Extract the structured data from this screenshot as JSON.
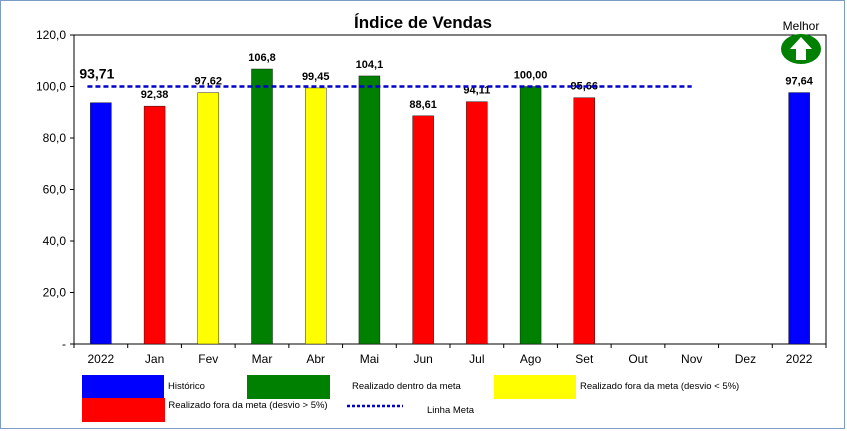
{
  "chart_data": {
    "type": "bar",
    "title": "Índice de Vendas",
    "ylim": [
      0,
      120
    ],
    "yticks": [
      "-",
      "20,0",
      "40,0",
      "60,0",
      "80,0",
      "100,0",
      "120,0"
    ],
    "grid": false,
    "categories": [
      "2022",
      "Jan",
      "Fev",
      "Mar",
      "Abr",
      "Mai",
      "Jun",
      "Jul",
      "Ago",
      "Set",
      "Out",
      "Nov",
      "Dez",
      "2022"
    ],
    "values": [
      93.71,
      92.38,
      97.62,
      106.8,
      99.45,
      104.1,
      88.61,
      94.11,
      100.0,
      95.66,
      null,
      null,
      null,
      97.64
    ],
    "value_labels": [
      "93,71",
      "92,38",
      "97,62",
      "106,8",
      "99,45",
      "104,1",
      "88,61",
      "94,11",
      "100,00",
      "95,66",
      "",
      "",
      "",
      "97,64"
    ],
    "bar_colors": [
      "#0000ff",
      "#ff0000",
      "#ffff00",
      "#008000",
      "#ffff00",
      "#008000",
      "#ff0000",
      "#ff0000",
      "#008000",
      "#ff0000",
      "",
      "",
      "",
      "#0000ff"
    ],
    "meta_line": {
      "value": 100,
      "from_category": "2022",
      "to_category": "Nov",
      "color": "#0000cc"
    },
    "indicator": {
      "label": "Melhor",
      "icon": "up-arrow-icon",
      "color": "#008000"
    },
    "legend": [
      {
        "label": "Histórico",
        "color": "#0000ff",
        "kind": "box"
      },
      {
        "label": "Realizado dentro da meta",
        "color": "#008000",
        "kind": "box"
      },
      {
        "label": "Realizado fora da meta (desvio < 5%)",
        "color": "#ffff00",
        "kind": "box"
      },
      {
        "label": "Realizado fora da meta (desvio > 5%)",
        "color": "#ff0000",
        "kind": "box"
      },
      {
        "label": "Linha Meta",
        "color": "#0000cc",
        "kind": "dashed-line"
      }
    ],
    "legend_position": "bottom"
  }
}
